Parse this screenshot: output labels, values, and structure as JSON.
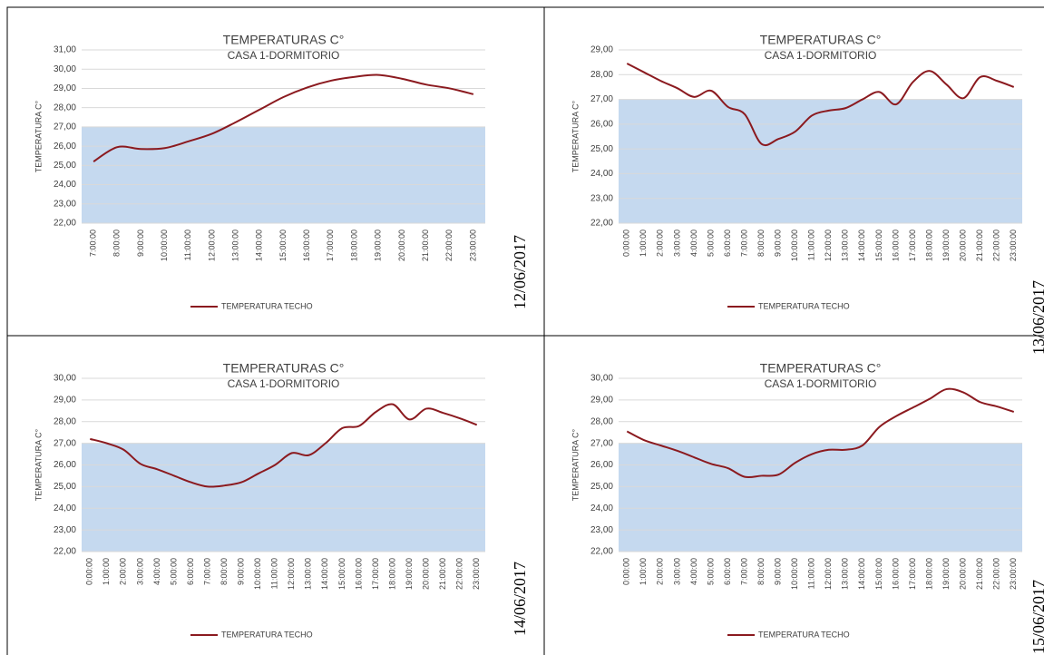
{
  "chart_data": [
    {
      "type": "line",
      "title": "TEMPERATURAS C°",
      "subtitle": "CASA 1-DORMITORIO",
      "y_label": "TEMPERATURA C°",
      "date": "12/06/2017",
      "categories": [
        "7:00:00",
        "8:00:00",
        "9:00:00",
        "10:00:00",
        "11:00:00",
        "12:00:00",
        "13:00:00",
        "14:00:00",
        "15:00:00",
        "16:00:00",
        "17:00:00",
        "18:00:00",
        "19:00:00",
        "20:00:00",
        "21:00:00",
        "22:00:00",
        "23:00:00"
      ],
      "series": [
        {
          "name": "TEMPERATURA TECHO",
          "color": "#8b1a1f",
          "values": [
            25.2,
            25.95,
            25.85,
            25.9,
            26.25,
            26.65,
            27.25,
            27.9,
            28.55,
            29.05,
            29.4,
            29.6,
            29.7,
            29.5,
            29.2,
            29.0,
            28.7
          ]
        }
      ],
      "shade": {
        "from": 22,
        "to": 27,
        "color": "#c5d9ef"
      },
      "ylim": [
        22,
        31
      ],
      "yticks": [
        {
          "value": 22,
          "label": "22,00"
        },
        {
          "value": 23,
          "label": "23,00"
        },
        {
          "value": 24,
          "label": "24,00"
        },
        {
          "value": 25,
          "label": "25,00"
        },
        {
          "value": 26,
          "label": "26,00"
        },
        {
          "value": 27,
          "label": "27,00"
        },
        {
          "value": 28,
          "label": "28,00"
        },
        {
          "value": 29,
          "label": "29,00"
        },
        {
          "value": 30,
          "label": "30,00"
        },
        {
          "value": 31,
          "label": "31,00"
        }
      ],
      "grid": true
    },
    {
      "type": "line",
      "title": "TEMPERATURAS C°",
      "subtitle": "CASA 1-DORMITORIO",
      "y_label": "TEMPERATURA C°",
      "date": "13/06/2017",
      "categories": [
        "0:00:00",
        "1:00:00",
        "2:00:00",
        "3:00:00",
        "4:00:00",
        "5:00:00",
        "6:00:00",
        "7:00:00",
        "8:00:00",
        "9:00:00",
        "10:00:00",
        "11:00:00",
        "12:00:00",
        "13:00:00",
        "14:00:00",
        "15:00:00",
        "16:00:00",
        "17:00:00",
        "18:00:00",
        "19:00:00",
        "20:00:00",
        "21:00:00",
        "22:00:00",
        "23:00:00"
      ],
      "series": [
        {
          "name": "TEMPERATURA TECHO",
          "color": "#8b1a1f",
          "values": [
            28.45,
            28.1,
            27.75,
            27.45,
            27.1,
            27.35,
            26.7,
            26.4,
            25.2,
            25.4,
            25.7,
            26.35,
            26.55,
            26.65,
            27.0,
            27.3,
            26.8,
            27.7,
            28.15,
            27.6,
            27.05,
            27.9,
            27.75,
            27.5
          ]
        }
      ],
      "shade": {
        "from": 22,
        "to": 27,
        "color": "#c5d9ef"
      },
      "ylim": [
        22,
        29
      ],
      "yticks": [
        {
          "value": 22,
          "label": "22,00"
        },
        {
          "value": 23,
          "label": "23,00"
        },
        {
          "value": 24,
          "label": "24,00"
        },
        {
          "value": 25,
          "label": "25,00"
        },
        {
          "value": 26,
          "label": "26,00"
        },
        {
          "value": 27,
          "label": "27,00"
        },
        {
          "value": 28,
          "label": "28,00"
        },
        {
          "value": 29,
          "label": "29,00"
        }
      ],
      "grid": true
    },
    {
      "type": "line",
      "title": "TEMPERATURAS C°",
      "subtitle": "CASA 1-DORMITORIO",
      "y_label": "TEMPERATURA C°",
      "date": "14/06/2017",
      "categories": [
        "0:00:00",
        "1:00:00",
        "2:00:00",
        "3:00:00",
        "4:00:00",
        "5:00:00",
        "6:00:00",
        "7:00:00",
        "8:00:00",
        "9:00:00",
        "10:00:00",
        "11:00:00",
        "12:00:00",
        "13:00:00",
        "14:00:00",
        "15:00:00",
        "16:00:00",
        "17:00:00",
        "18:00:00",
        "19:00:00",
        "20:00:00",
        "21:00:00",
        "22:00:00",
        "23:00:00"
      ],
      "series": [
        {
          "name": "TEMPERATURA TECHO",
          "color": "#8b1a1f",
          "values": [
            27.2,
            27.0,
            26.7,
            26.05,
            25.8,
            25.5,
            25.2,
            25.0,
            25.05,
            25.2,
            25.6,
            26.0,
            26.55,
            26.45,
            27.0,
            27.7,
            27.8,
            28.45,
            28.8,
            28.1,
            28.6,
            28.4,
            28.15,
            27.85
          ]
        }
      ],
      "shade": {
        "from": 22,
        "to": 27,
        "color": "#c5d9ef"
      },
      "ylim": [
        22,
        30
      ],
      "yticks": [
        {
          "value": 22,
          "label": "22,00"
        },
        {
          "value": 23,
          "label": "23,00"
        },
        {
          "value": 24,
          "label": "24,00"
        },
        {
          "value": 25,
          "label": "25,00"
        },
        {
          "value": 26,
          "label": "26,00"
        },
        {
          "value": 27,
          "label": "27,00"
        },
        {
          "value": 28,
          "label": "28,00"
        },
        {
          "value": 29,
          "label": "29,00"
        },
        {
          "value": 30,
          "label": "30,00"
        }
      ],
      "grid": true
    },
    {
      "type": "line",
      "title": "TEMPERATURAS C°",
      "subtitle": "CASA 1-DORMITORIO",
      "y_label": "TEMPERATURA C°",
      "date": "15/06/2017",
      "categories": [
        "0:00:00",
        "1:00:00",
        "2:00:00",
        "3:00:00",
        "4:00:00",
        "5:00:00",
        "6:00:00",
        "7:00:00",
        "8:00:00",
        "9:00:00",
        "10:00:00",
        "11:00:00",
        "12:00:00",
        "13:00:00",
        "14:00:00",
        "15:00:00",
        "16:00:00",
        "17:00:00",
        "18:00:00",
        "19:00:00",
        "20:00:00",
        "21:00:00",
        "22:00:00",
        "23:00:00"
      ],
      "series": [
        {
          "name": "TEMPERATURA TECHO",
          "color": "#8b1a1f",
          "values": [
            27.55,
            27.15,
            26.9,
            26.65,
            26.35,
            26.05,
            25.85,
            25.45,
            25.5,
            25.55,
            26.1,
            26.5,
            26.7,
            26.7,
            26.9,
            27.75,
            28.25,
            28.65,
            29.05,
            29.5,
            29.35,
            28.9,
            28.7,
            28.45
          ]
        }
      ],
      "shade": {
        "from": 22,
        "to": 27,
        "color": "#c5d9ef"
      },
      "ylim": [
        22,
        30
      ],
      "yticks": [
        {
          "value": 22,
          "label": "22,00"
        },
        {
          "value": 23,
          "label": "23,00"
        },
        {
          "value": 24,
          "label": "24,00"
        },
        {
          "value": 25,
          "label": "25,00"
        },
        {
          "value": 26,
          "label": "26,00"
        },
        {
          "value": 27,
          "label": "27,00"
        },
        {
          "value": 28,
          "label": "28,00"
        },
        {
          "value": 29,
          "label": "29,00"
        },
        {
          "value": 30,
          "label": "30,00"
        }
      ],
      "grid": true
    }
  ]
}
